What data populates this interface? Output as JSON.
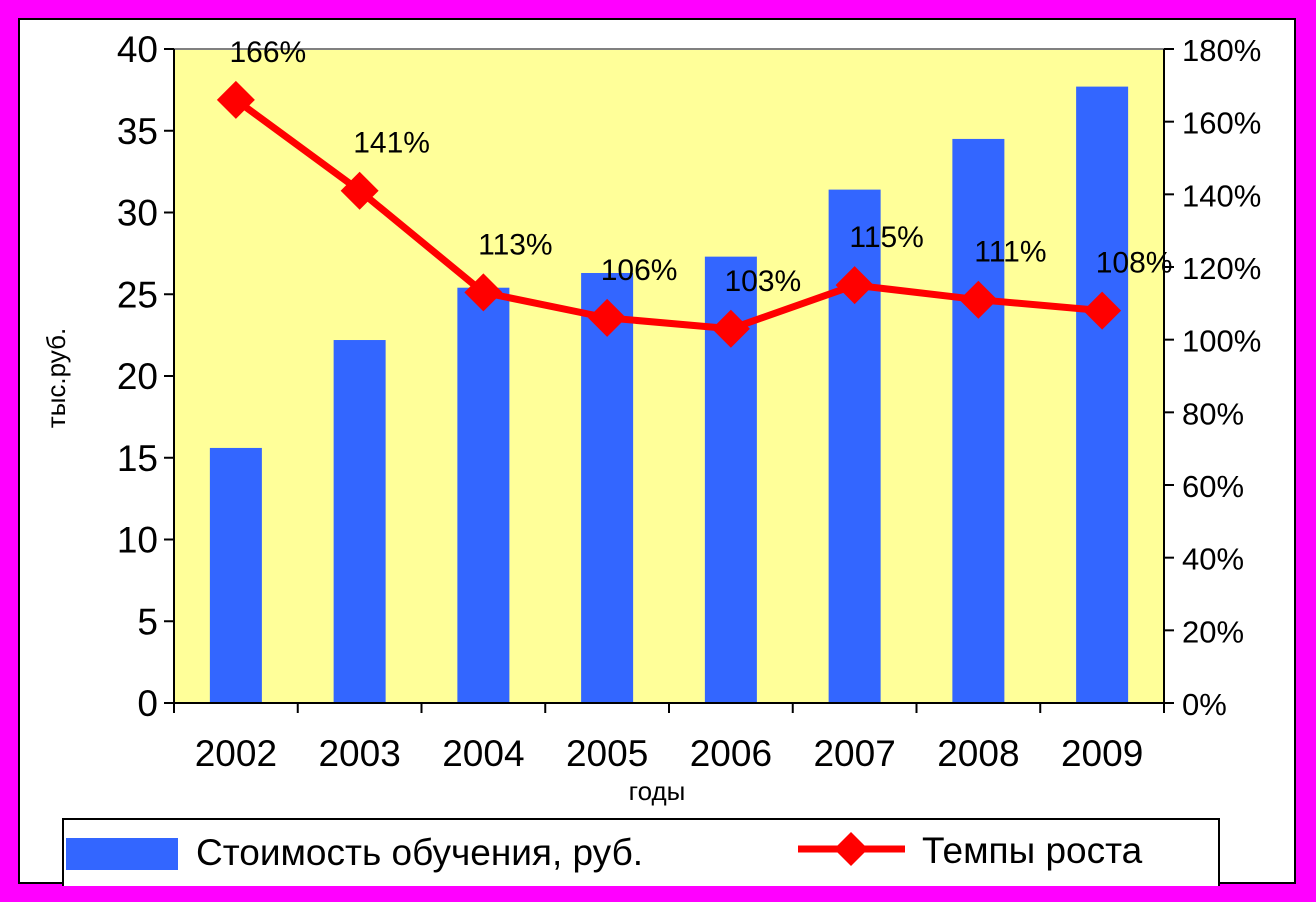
{
  "chart_data": {
    "type": "bar",
    "categories": [
      "2002",
      "2003",
      "2004",
      "2005",
      "2006",
      "2007",
      "2008",
      "2009"
    ],
    "series": [
      {
        "name": "Стоимость обучения, руб.",
        "type": "bar",
        "axis": "left",
        "color": "#3366ff",
        "values": [
          15.6,
          22.2,
          25.4,
          26.3,
          27.3,
          31.4,
          34.5,
          37.7
        ]
      },
      {
        "name": "Темпы роста",
        "type": "line",
        "axis": "right",
        "color": "#ff0000",
        "values": [
          166,
          141,
          113,
          106,
          103,
          115,
          111,
          108
        ],
        "labels": [
          "166%",
          "141%",
          "113%",
          "106%",
          "103%",
          "115%",
          "111%",
          "108%"
        ]
      }
    ],
    "xlabel": "годы",
    "ylabel": "тыс.руб.",
    "ylim": [
      0,
      40
    ],
    "y_ticks": [
      "0",
      "5",
      "10",
      "15",
      "20",
      "25",
      "30",
      "35",
      "40"
    ],
    "y2lim": [
      0,
      180
    ],
    "y2_ticks": [
      "0%",
      "20%",
      "40%",
      "60%",
      "80%",
      "100%",
      "120%",
      "140%",
      "160%",
      "180%"
    ],
    "plot_background": "#ffff99",
    "page_background": "#ff00ff",
    "grid": false,
    "legend_position": "bottom"
  }
}
